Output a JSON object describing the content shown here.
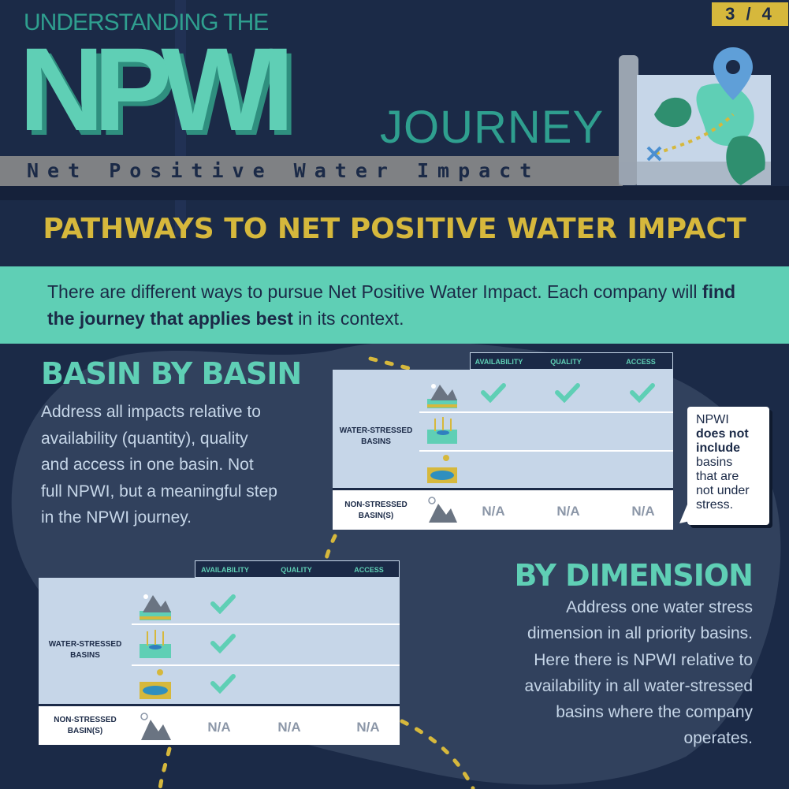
{
  "header": {
    "kicker": "UNDERSTANDING THE",
    "acronym": "NPWI",
    "journey": "JOURNEY",
    "subtitle": "Net Positive Water Impact",
    "page_indicator": "3 / 4"
  },
  "banner": {
    "title": "PATHWAYS TO NET POSITIVE WATER IMPACT"
  },
  "intro": {
    "text_before": "There are different ways to pursue Net Positive Water Impact. Each company will ",
    "text_bold": "find the journey that applies best",
    "text_after": " in its context."
  },
  "basin_by_basin": {
    "heading": "BASIN BY BASIN",
    "lines": [
      "Address all impacts relative to",
      "availability (quantity), quality",
      "and access in one basin. Not",
      "full NPWI, but a meaningful step",
      "in the NPWI journey."
    ],
    "table": {
      "columns": [
        "AVAILABILITY",
        "QUALITY",
        "ACCESS"
      ],
      "stressed_label": [
        "WATER-STRESSED",
        "BASINS"
      ],
      "non_stressed_label": [
        "NON-STRESSED",
        "BASIN(S)"
      ],
      "na": [
        "N/A",
        "N/A",
        "N/A"
      ]
    },
    "callout": {
      "line1": "NPWI",
      "bold": [
        "does not",
        "include"
      ],
      "rest": [
        "basins",
        "that are",
        "not under",
        "stress."
      ]
    }
  },
  "by_dimension": {
    "heading": "BY DIMENSION",
    "lines": [
      "Address one water stress",
      "dimension in all priority basins.",
      "Here there is NPWI relative to",
      "availability in all water-stressed",
      "basins where the company",
      "operates."
    ],
    "table": {
      "columns": [
        "AVAILABILITY",
        "QUALITY",
        "ACCESS"
      ],
      "stressed_label": [
        "WATER-STRESSED",
        "BASINS"
      ],
      "non_stressed_label": [
        "NON-STRESSED",
        "BASIN(S)"
      ],
      "na": [
        "N/A",
        "N/A",
        "N/A"
      ]
    }
  },
  "colors": {
    "navy": "#1b2a47",
    "teal": "#5fcfb5",
    "gold": "#d6b83c",
    "table_bg": "#c6d6e8"
  }
}
